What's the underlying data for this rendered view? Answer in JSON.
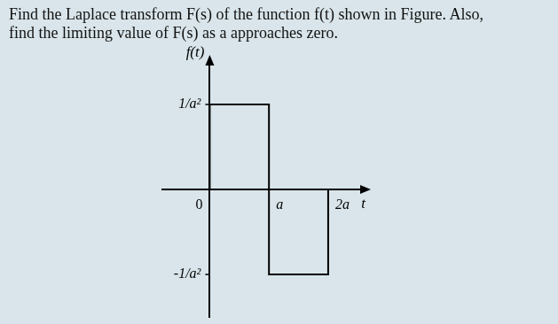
{
  "chart_data": {
    "type": "line",
    "title": [
      "Find the Laplace transform F(s) of the function f(t) shown in Figure. Also,",
      "find the limiting value of F(s) as a approaches zero."
    ],
    "x_label": "t",
    "y_label": "f(t)",
    "x": [
      0,
      0,
      1,
      1,
      2,
      2
    ],
    "values": [
      0,
      1,
      1,
      -1,
      -1,
      0
    ],
    "color": "#000000",
    "xlim": [
      -0.8,
      2.6
    ],
    "ylim": [
      -1.5,
      1.5
    ],
    "xticks": [
      0,
      {
        "value": 1,
        "label": "a"
      },
      {
        "value": 2,
        "label": "2a"
      }
    ],
    "yticks": [
      {
        "value": -1,
        "label": "-1/a²"
      },
      {
        "value": 1,
        "label": "1/a²"
      }
    ],
    "grid": false
  }
}
